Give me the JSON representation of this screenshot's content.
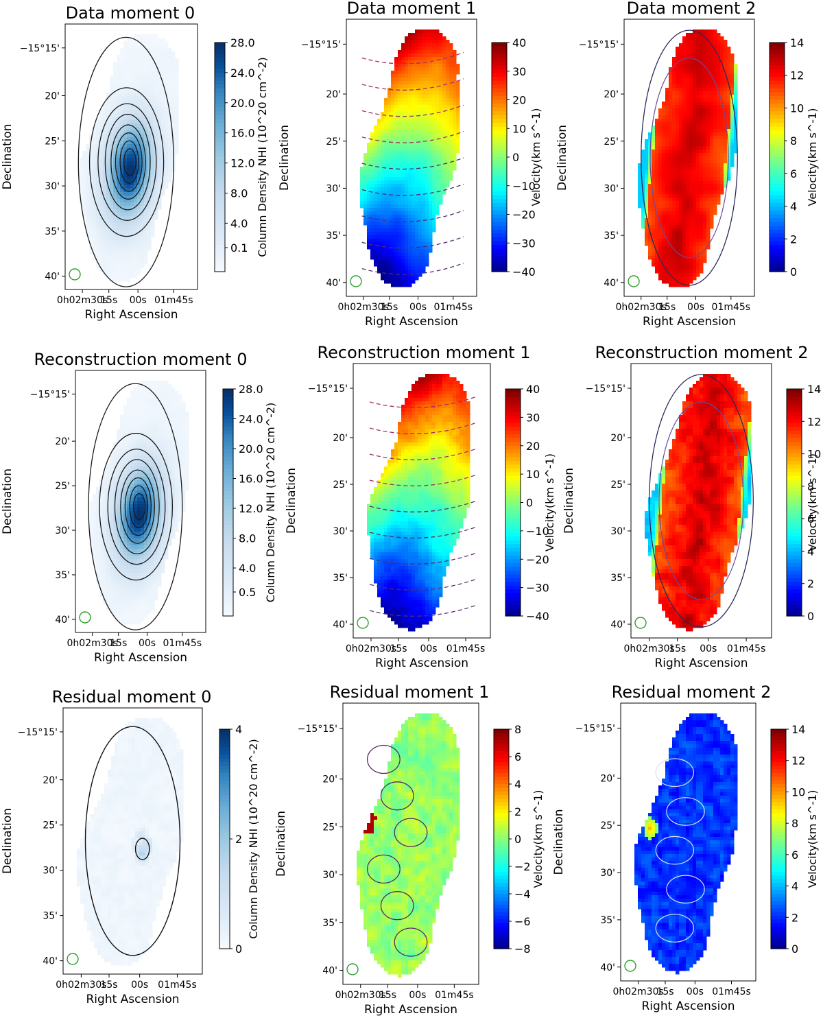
{
  "figure": {
    "panels": [
      {
        "title": "Data moment 0",
        "kind": "m0",
        "cbar_label": "Column Density NHI (10^20 cm^-2)",
        "cbar_ticks": [
          "28.0",
          "24.0",
          "20.0",
          "16.0",
          "12.0",
          "8.0",
          "4.0",
          "0.1"
        ]
      },
      {
        "title": "Data moment 1",
        "kind": "m1",
        "cbar_label": "Velocity(km s^-1)",
        "cbar_ticks": [
          "40",
          "30",
          "20",
          "10",
          "0",
          "−10",
          "−20",
          "−30",
          "−40"
        ]
      },
      {
        "title": "Data  moment 2",
        "kind": "m2",
        "cbar_label": "Velocity(km s^-1)",
        "cbar_ticks": [
          "14",
          "12",
          "10",
          "8",
          "6",
          "4",
          "2",
          "0"
        ]
      },
      {
        "title": "Reconstruction moment 0",
        "kind": "m0",
        "cbar_label": "Column Density NHI (10^20 cm^-2)",
        "cbar_ticks": [
          "28.0",
          "24.0",
          "20.0",
          "16.0",
          "12.0",
          "8.0",
          "4.0",
          "0.5"
        ]
      },
      {
        "title": "Reconstruction moment 1",
        "kind": "m1",
        "cbar_label": "Velocity(km s^-1)",
        "cbar_ticks": [
          "40",
          "30",
          "20",
          "10",
          "0",
          "−10",
          "−20",
          "−30",
          "−40"
        ]
      },
      {
        "title": "Reconstruction  moment 2",
        "kind": "m2",
        "cbar_label": "Velocity(km s^-1)",
        "cbar_ticks": [
          "14",
          "12",
          "10",
          "8",
          "6",
          "4",
          "2",
          "0"
        ]
      },
      {
        "title": "Residual moment 0",
        "kind": "r0",
        "cbar_label": "Column Density NHI (10^20 cm^-2)",
        "cbar_ticks": [
          "4",
          "2",
          "0"
        ]
      },
      {
        "title": "Residual moment 1",
        "kind": "r1",
        "cbar_label": "Velocity(km s^-1)",
        "cbar_ticks": [
          "8",
          "6",
          "4",
          "2",
          "0",
          "−2",
          "−4",
          "−6",
          "−8"
        ]
      },
      {
        "title": "Residual  moment 2",
        "kind": "r2",
        "cbar_label": "Velocity(km s^-1)",
        "cbar_ticks": [
          "14",
          "12",
          "10",
          "8",
          "6",
          "4",
          "2",
          "0"
        ]
      }
    ],
    "ylabel": "Declination",
    "xlabel": "Right Ascension",
    "dec_ticks": [
      "−15°15'",
      "20'",
      "25'",
      "30'",
      "35'",
      "40'"
    ],
    "ra_ticks": [
      "0h02m30s",
      "15s",
      "00s",
      "01m45s"
    ]
  },
  "chart_data": {
    "type": "heatmap",
    "layout": "3x3 grid of HI moment maps",
    "rows": [
      "Data",
      "Reconstruction",
      "Residual"
    ],
    "columns": [
      "moment 0",
      "moment 1",
      "moment 2"
    ],
    "x_axis": {
      "label": "Right Ascension",
      "ticks": [
        "0h02m30s",
        "15s",
        "00s",
        "01m45s"
      ]
    },
    "y_axis": {
      "label": "Declination",
      "ticks": [
        "−15°15'",
        "20'",
        "25'",
        "30'",
        "35'",
        "40'"
      ]
    },
    "colorbars": {
      "moment0": {
        "label": "Column Density NHI (10^20 cm^-2)",
        "range": [
          0,
          28
        ]
      },
      "moment1": {
        "label": "Velocity (km s^-1)",
        "range": [
          -40,
          40
        ]
      },
      "moment2": {
        "label": "Velocity (km s^-1)",
        "range": [
          0,
          14
        ]
      },
      "residual_moment0": {
        "label": "Column Density NHI (10^20 cm^-2)",
        "range": [
          0,
          4
        ]
      },
      "residual_moment1": {
        "label": "Velocity (km s^-1)",
        "range": [
          -8,
          8
        ]
      },
      "residual_moment2": {
        "label": "Velocity (km s^-1)",
        "range": [
          0,
          14
        ]
      }
    },
    "colors": {
      "m0_low": "#f7fbff",
      "m0_high": "#08306b",
      "beam": "#2ca02c"
    }
  }
}
